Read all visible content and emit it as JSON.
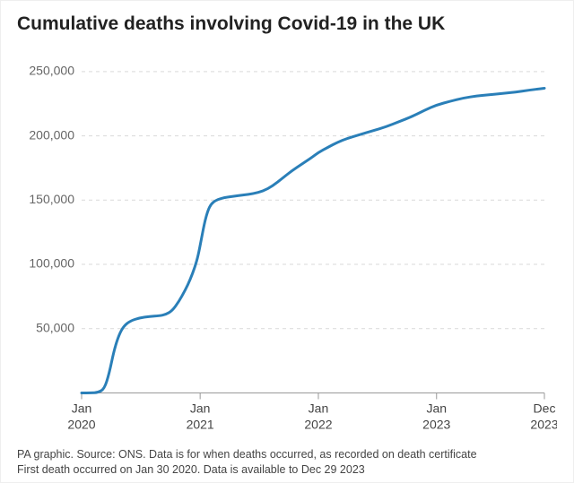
{
  "title": "Cumulative deaths involving Covid-19 in the UK",
  "title_fontsize": 21,
  "title_color": "#222222",
  "footer_line1": "PA graphic. Source: ONS. Data is for when deaths occurred, as recorded on death certificate",
  "footer_line2": "First death occurred on Jan 30 2020. Data is available to Dec 29 2023",
  "footer_fontsize": 12.5,
  "footer_color": "#444444",
  "chart": {
    "type": "line",
    "background_color": "#ffffff",
    "grid_color": "#d9d9d9",
    "axis_color": "#999999",
    "tick_label_color": "#666666",
    "tick_fontsize": 14,
    "line_color": "#2a7fb8",
    "line_width": 3,
    "ylim": [
      0,
      260000
    ],
    "yticks": [
      50000,
      100000,
      150000,
      200000,
      250000
    ],
    "ytick_labels": [
      "50,000",
      "100,000",
      "150,000",
      "200,000",
      "250,000"
    ],
    "x_domain_days": [
      0,
      1429
    ],
    "xticks": [
      {
        "day": 0,
        "top": "Jan",
        "bottom": "2020"
      },
      {
        "day": 366,
        "top": "Jan",
        "bottom": "2021"
      },
      {
        "day": 731,
        "top": "Jan",
        "bottom": "2022"
      },
      {
        "day": 1096,
        "top": "Jan",
        "bottom": "2023"
      },
      {
        "day": 1429,
        "top": "Dec",
        "bottom": "2023"
      }
    ],
    "series": [
      {
        "day": 0,
        "value": 0
      },
      {
        "day": 29,
        "value": 0
      },
      {
        "day": 50,
        "value": 300
      },
      {
        "day": 70,
        "value": 3000
      },
      {
        "day": 85,
        "value": 15000
      },
      {
        "day": 100,
        "value": 33000
      },
      {
        "day": 115,
        "value": 45000
      },
      {
        "day": 130,
        "value": 52000
      },
      {
        "day": 150,
        "value": 56000
      },
      {
        "day": 180,
        "value": 58500
      },
      {
        "day": 210,
        "value": 59500
      },
      {
        "day": 240,
        "value": 60000
      },
      {
        "day": 260,
        "value": 61000
      },
      {
        "day": 280,
        "value": 64000
      },
      {
        "day": 300,
        "value": 71000
      },
      {
        "day": 320,
        "value": 80000
      },
      {
        "day": 335,
        "value": 88000
      },
      {
        "day": 350,
        "value": 98000
      },
      {
        "day": 360,
        "value": 107000
      },
      {
        "day": 370,
        "value": 120000
      },
      {
        "day": 380,
        "value": 133000
      },
      {
        "day": 390,
        "value": 142000
      },
      {
        "day": 400,
        "value": 147000
      },
      {
        "day": 415,
        "value": 150000
      },
      {
        "day": 440,
        "value": 152000
      },
      {
        "day": 470,
        "value": 153000
      },
      {
        "day": 500,
        "value": 154000
      },
      {
        "day": 530,
        "value": 155000
      },
      {
        "day": 560,
        "value": 157000
      },
      {
        "day": 590,
        "value": 161000
      },
      {
        "day": 620,
        "value": 167000
      },
      {
        "day": 650,
        "value": 173000
      },
      {
        "day": 680,
        "value": 178000
      },
      {
        "day": 710,
        "value": 183000
      },
      {
        "day": 731,
        "value": 187000
      },
      {
        "day": 760,
        "value": 191000
      },
      {
        "day": 790,
        "value": 195000
      },
      {
        "day": 820,
        "value": 198000
      },
      {
        "day": 860,
        "value": 201000
      },
      {
        "day": 900,
        "value": 204000
      },
      {
        "day": 940,
        "value": 207000
      },
      {
        "day": 980,
        "value": 211000
      },
      {
        "day": 1020,
        "value": 215000
      },
      {
        "day": 1060,
        "value": 220000
      },
      {
        "day": 1096,
        "value": 224000
      },
      {
        "day": 1140,
        "value": 227000
      },
      {
        "day": 1180,
        "value": 229500
      },
      {
        "day": 1220,
        "value": 231000
      },
      {
        "day": 1260,
        "value": 232000
      },
      {
        "day": 1300,
        "value": 233000
      },
      {
        "day": 1340,
        "value": 234000
      },
      {
        "day": 1380,
        "value": 235500
      },
      {
        "day": 1429,
        "value": 237000
      }
    ]
  }
}
